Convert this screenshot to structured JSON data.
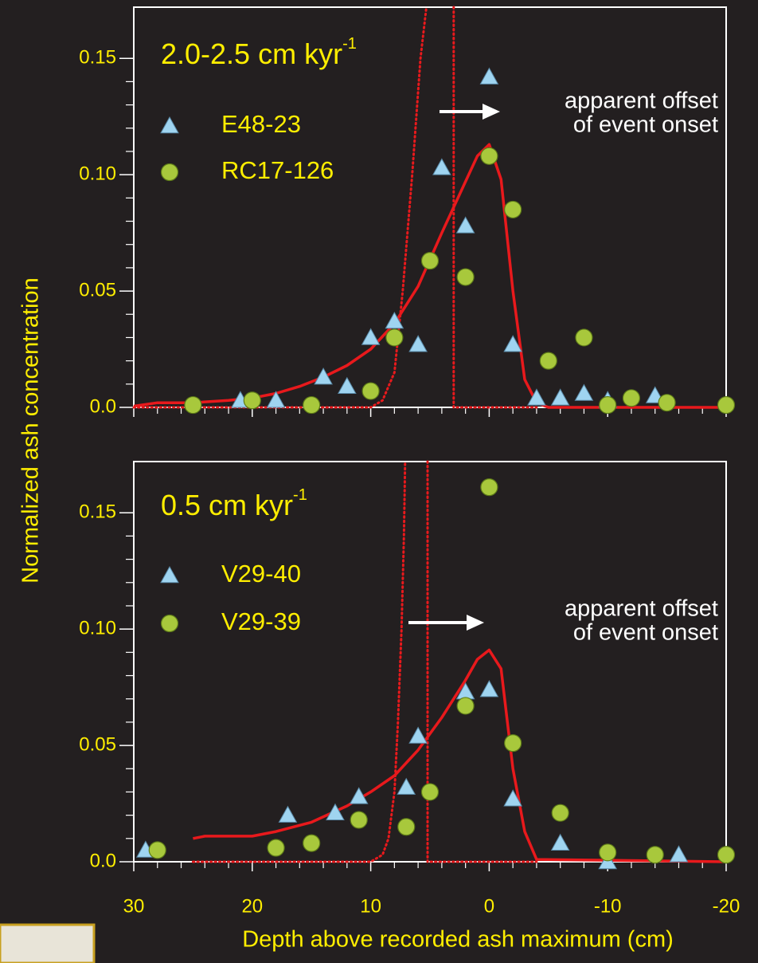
{
  "chart_data": [
    {
      "type": "scatter",
      "title": "2.0-2.5 cm kyr",
      "title_superscript": "-1",
      "ylabel": "Normalized ash concentration",
      "annotation": [
        "apparent offset",
        "of event onset"
      ],
      "xlim": [
        30,
        -20
      ],
      "ylim": [
        0,
        0.172
      ],
      "yticks": [
        {
          "value": 0,
          "label": "0.0"
        },
        0.05,
        {
          "value": 0.1,
          "label": "0.10"
        },
        0.15
      ],
      "series": [
        {
          "name": "E48-23",
          "marker": "triangle",
          "color": "#9fd4f0",
          "x": [
            21,
            18,
            14,
            12,
            10,
            8,
            6,
            4,
            2,
            0,
            -2,
            -4,
            -6,
            -8,
            -10,
            -14
          ],
          "values": [
            0.003,
            0.003,
            0.013,
            0.009,
            0.03,
            0.037,
            0.027,
            0.103,
            0.078,
            0.142,
            0.027,
            0.004,
            0.004,
            0.006,
            0.003,
            0.005
          ]
        },
        {
          "name": "RC17-126",
          "marker": "circle",
          "color": "#a8c83c",
          "x": [
            25,
            20,
            15,
            10,
            8,
            5,
            2,
            0,
            -2,
            -5,
            -8,
            -10,
            -12,
            -15,
            -20
          ],
          "values": [
            0.001,
            0.003,
            0.001,
            0.007,
            0.03,
            0.063,
            0.056,
            0.108,
            0.085,
            0.02,
            0.03,
            0.001,
            0.004,
            0.002,
            0.001
          ]
        },
        {
          "marker": "line",
          "style": "solid",
          "color": "#e8191c",
          "x": [
            30,
            28,
            25,
            22,
            20,
            18,
            16,
            14,
            12,
            10,
            8,
            6,
            4,
            2,
            1,
            0,
            -1,
            -2,
            -3,
            -4,
            -5,
            -20
          ],
          "values": [
            0.0005,
            0.002,
            0.002,
            0.003,
            0.004,
            0.006,
            0.009,
            0.013,
            0.018,
            0.025,
            0.036,
            0.052,
            0.075,
            0.097,
            0.108,
            0.113,
            0.098,
            0.05,
            0.012,
            0.002,
            0,
            0
          ]
        },
        {
          "marker": "line",
          "style": "dotted",
          "color": "#e8191c",
          "x": [
            30,
            10,
            9,
            8,
            7.3,
            6.5,
            5.8,
            5.3
          ],
          "values": [
            0,
            0,
            0.003,
            0.015,
            0.05,
            0.1,
            0.15,
            0.172
          ]
        },
        {
          "marker": "line",
          "style": "dotted",
          "color": "#e8191c",
          "x": [
            3,
            3,
            -4
          ],
          "values": [
            0.172,
            0,
            0
          ]
        }
      ]
    },
    {
      "type": "scatter",
      "title": "0.5 cm kyr",
      "title_superscript": "-1",
      "xlabel": "Depth above recorded ash maximum (cm)",
      "annotation": [
        "apparent offset",
        "of event onset"
      ],
      "xlim": [
        30,
        -20
      ],
      "ylim": [
        0,
        0.172
      ],
      "xticks": [
        30,
        20,
        10,
        0,
        -10,
        -20
      ],
      "yticks": [
        {
          "value": 0,
          "label": "0.0"
        },
        0.05,
        {
          "value": 0.1,
          "label": "0.10"
        },
        0.15
      ],
      "series": [
        {
          "name": "V29-40",
          "marker": "triangle",
          "color": "#9fd4f0",
          "x": [
            29,
            17,
            13,
            11,
            7,
            6,
            2,
            0,
            -2,
            -6,
            -10,
            -16
          ],
          "values": [
            0.005,
            0.02,
            0.021,
            0.028,
            0.032,
            0.054,
            0.073,
            0.074,
            0.027,
            0.008,
            0,
            0.003
          ]
        },
        {
          "name": "V29-39",
          "marker": "circle",
          "color": "#a8c83c",
          "x": [
            28,
            18,
            15,
            11,
            7,
            5,
            2,
            0,
            -2,
            -6,
            -10,
            -14,
            -20
          ],
          "values": [
            0.005,
            0.006,
            0.008,
            0.018,
            0.015,
            0.03,
            0.067,
            0.161,
            0.051,
            0.021,
            0.004,
            0.003,
            0.003
          ]
        },
        {
          "marker": "line",
          "style": "solid",
          "color": "#e8191c",
          "x": [
            25,
            24,
            20,
            18,
            15,
            12,
            10,
            8,
            6,
            4,
            2,
            1,
            0,
            -1,
            -2,
            -3,
            -4,
            -20
          ],
          "values": [
            0.01,
            0.011,
            0.011,
            0.013,
            0.017,
            0.024,
            0.03,
            0.037,
            0.048,
            0.062,
            0.078,
            0.087,
            0.091,
            0.083,
            0.04,
            0.013,
            0.001,
            0
          ]
        },
        {
          "marker": "line",
          "style": "dotted",
          "color": "#e8191c",
          "x": [
            25,
            10,
            9,
            8.5,
            8,
            7.7,
            7.4,
            7.2,
            7.1
          ],
          "values": [
            0,
            0,
            0.003,
            0.01,
            0.03,
            0.06,
            0.1,
            0.14,
            0.172
          ]
        },
        {
          "marker": "line",
          "style": "dotted",
          "color": "#e8191c",
          "x": [
            5.2,
            5.2,
            -4
          ],
          "values": [
            0.172,
            0,
            0
          ]
        }
      ]
    }
  ]
}
